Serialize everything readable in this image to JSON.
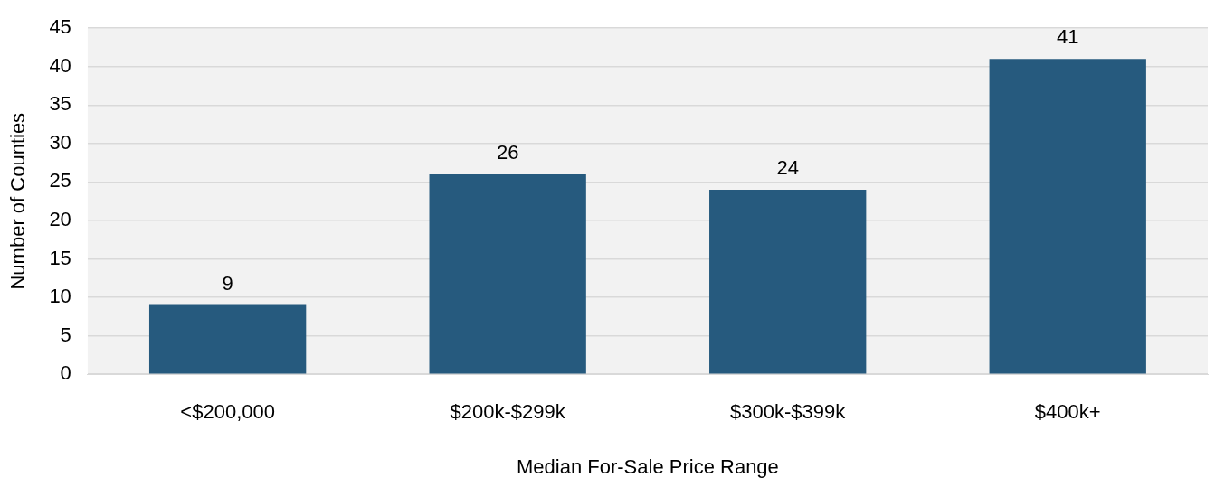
{
  "chart_data": {
    "type": "bar",
    "xlabel": "Median For-Sale Price Range",
    "ylabel": "Number of Counties",
    "categories": [
      "<$200,000",
      "$200k-$299k",
      "$300k-$399k",
      "$400k+"
    ],
    "values": [
      9,
      26,
      24,
      41
    ],
    "color": "#265a7e",
    "ylim": [
      0,
      45
    ],
    "yticks": [
      0,
      5,
      10,
      15,
      20,
      25,
      30,
      35,
      40,
      45
    ],
    "grid": "y",
    "data_labels": true
  }
}
